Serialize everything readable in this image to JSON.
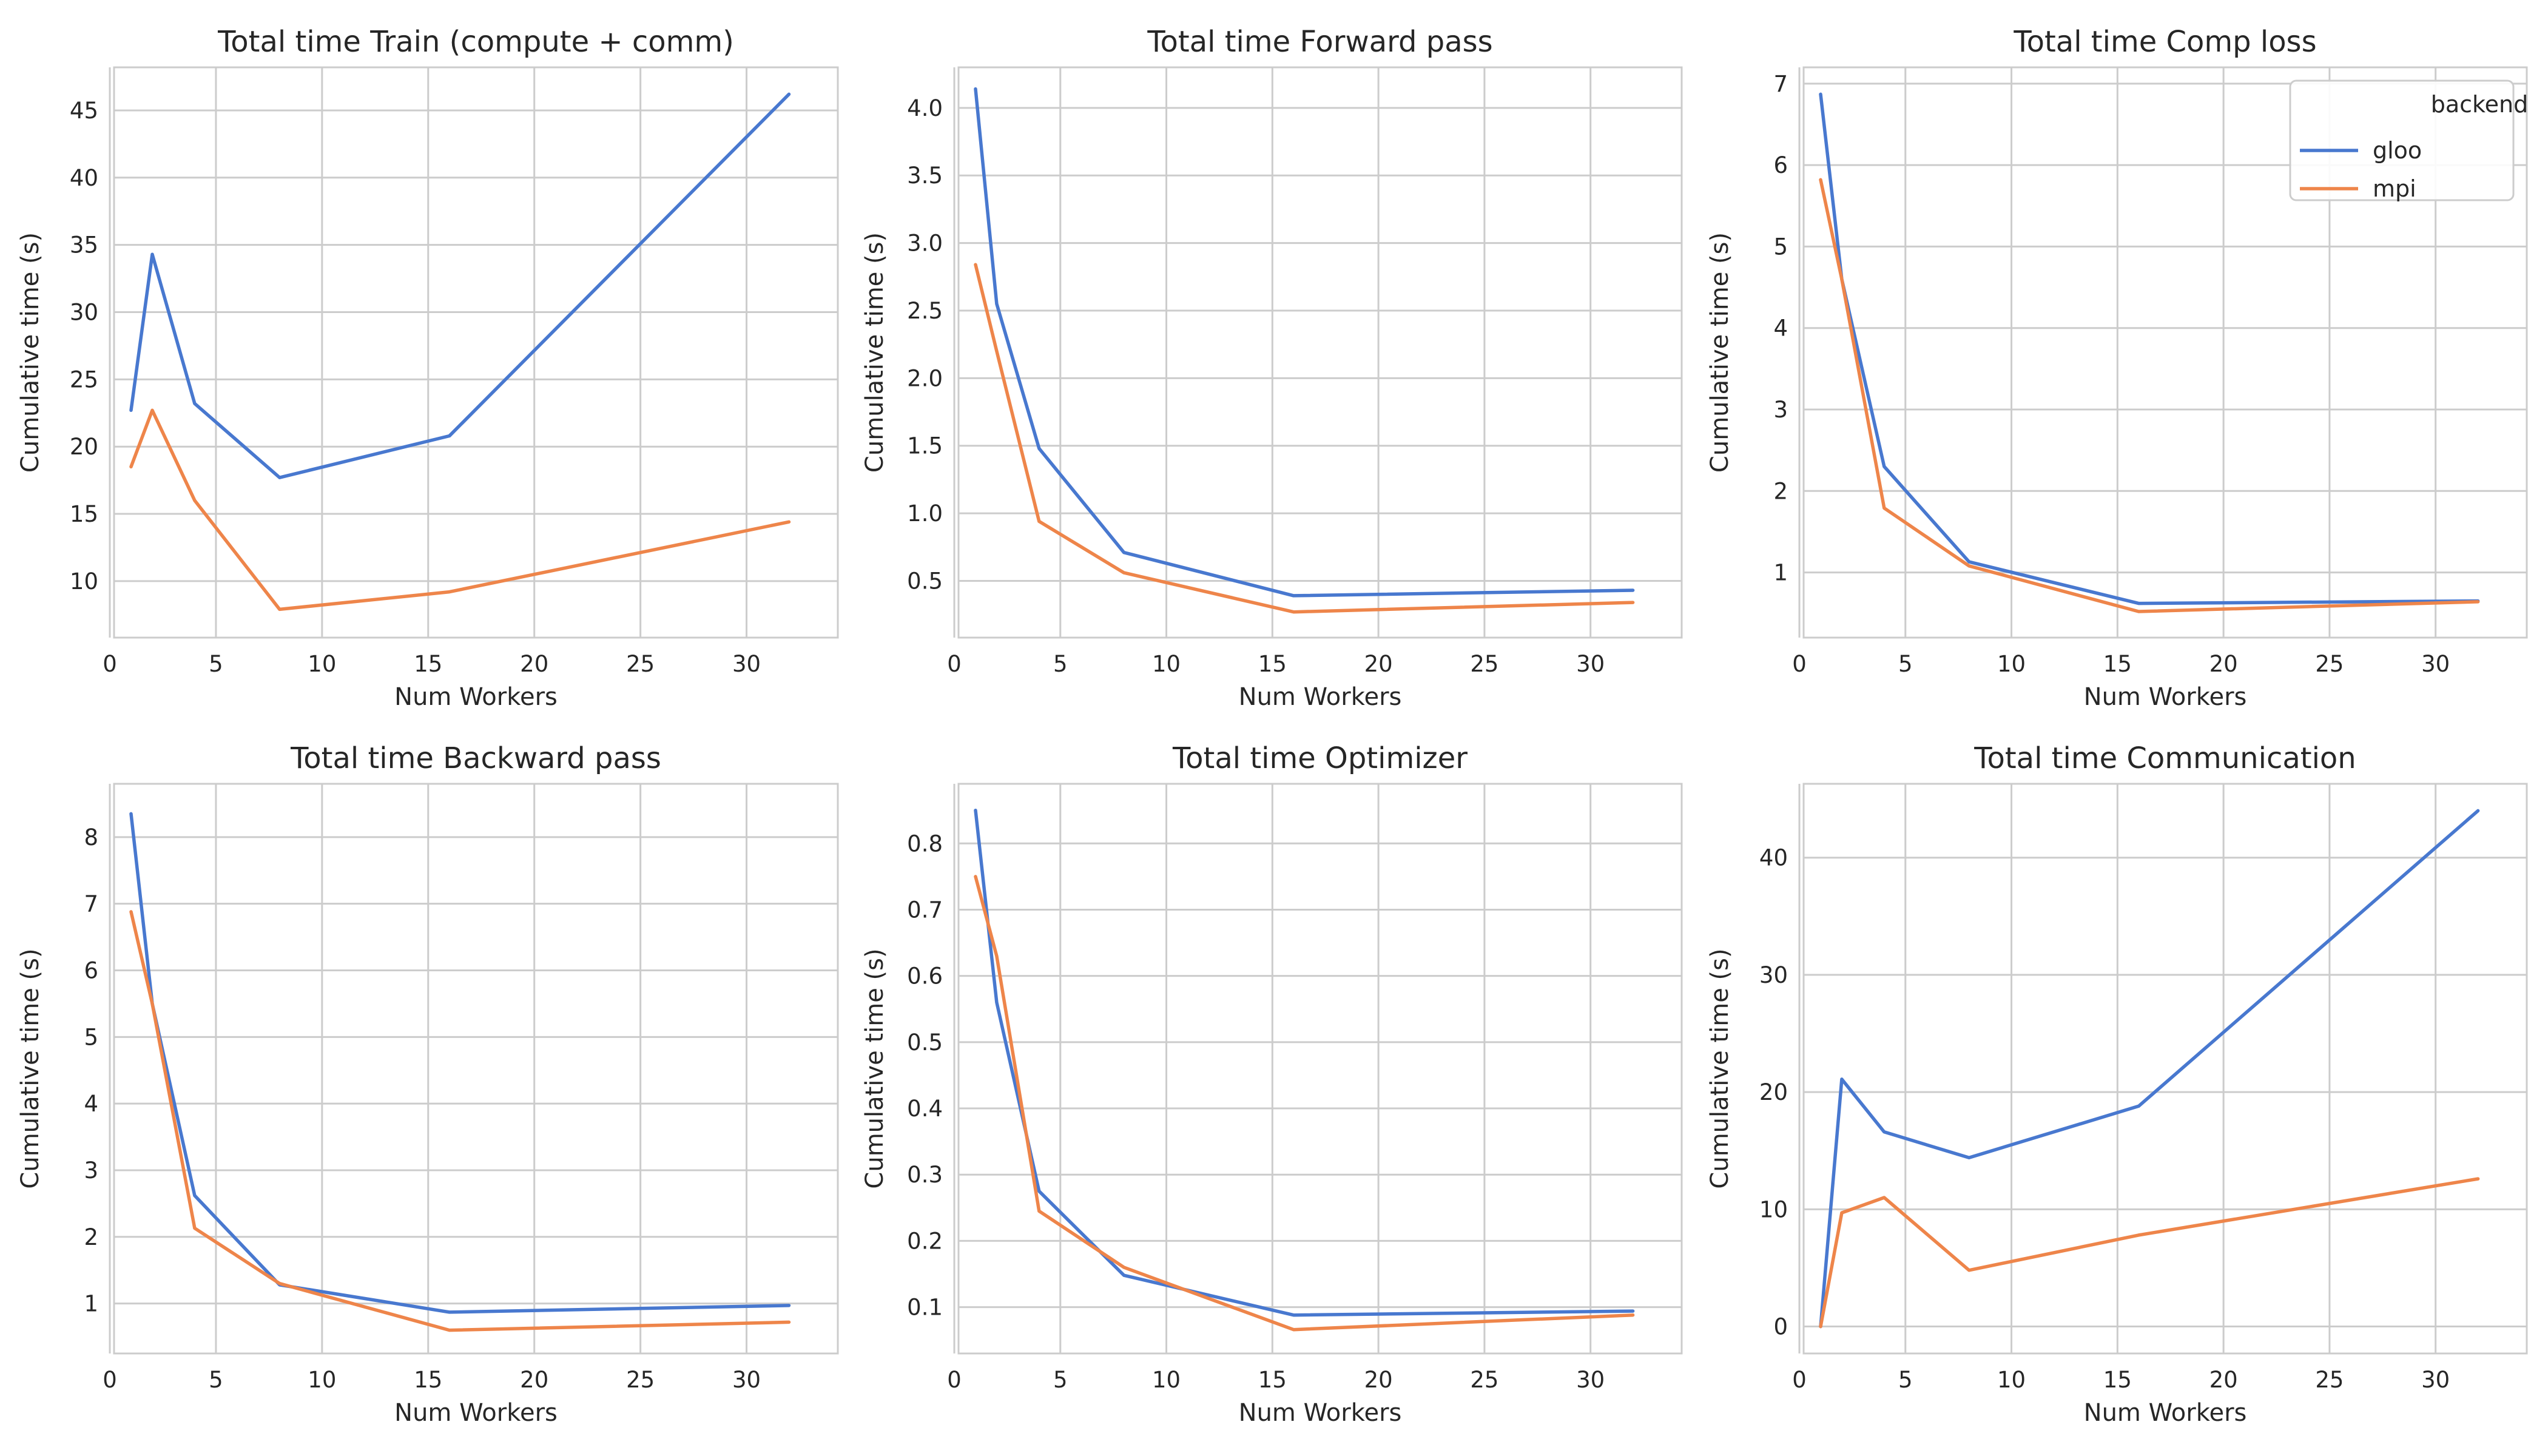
{
  "figure": {
    "legend": {
      "title": "backend",
      "placement": "top-right",
      "panel": 2
    }
  },
  "series_styles": [
    {
      "name": "gloo",
      "color": "#4878cf"
    },
    {
      "name": "mpi",
      "color": "#ee854a"
    }
  ],
  "chart_data": [
    {
      "type": "line",
      "title": "Total time Train (compute + comm)",
      "xlabel": "Num Workers",
      "ylabel": "Cumulative time (s)",
      "xlim": [
        0.2,
        34.3
      ],
      "ylim": [
        5.8,
        48.2
      ],
      "xticks": [
        0,
        5,
        10,
        15,
        20,
        25,
        30
      ],
      "yticks": [
        10,
        15,
        20,
        25,
        30,
        35,
        40,
        45
      ],
      "grid": true,
      "x": [
        1,
        2,
        4,
        8,
        16,
        32
      ],
      "series": [
        {
          "name": "gloo",
          "values": [
            22.7,
            34.3,
            23.2,
            17.7,
            20.8,
            46.2
          ]
        },
        {
          "name": "mpi",
          "values": [
            18.5,
            22.7,
            16.0,
            7.9,
            9.2,
            14.4
          ]
        }
      ]
    },
    {
      "type": "line",
      "title": "Total time Forward pass",
      "xlabel": "Num Workers",
      "ylabel": "Cumulative time (s)",
      "xlim": [
        0.2,
        34.3
      ],
      "ylim": [
        0.08,
        4.3
      ],
      "xticks": [
        0,
        5,
        10,
        15,
        20,
        25,
        30
      ],
      "yticks": [
        0.5,
        1.0,
        1.5,
        2.0,
        2.5,
        3.0,
        3.5,
        4.0
      ],
      "yticks_labels": [
        "0.5",
        "1.0",
        "1.5",
        "2.0",
        "2.5",
        "3.0",
        "3.5",
        "4.0"
      ],
      "grid": true,
      "x": [
        1,
        2,
        4,
        8,
        16,
        32
      ],
      "series": [
        {
          "name": "gloo",
          "values": [
            4.14,
            2.55,
            1.48,
            0.71,
            0.39,
            0.43
          ]
        },
        {
          "name": "mpi",
          "values": [
            2.84,
            2.2,
            0.94,
            0.56,
            0.27,
            0.34
          ]
        }
      ]
    },
    {
      "type": "line",
      "title": "Total time Comp loss",
      "xlabel": "Num Workers",
      "ylabel": "Cumulative time (s)",
      "xlim": [
        0.2,
        34.3
      ],
      "ylim": [
        0.2,
        7.2
      ],
      "xticks": [
        0,
        5,
        10,
        15,
        20,
        25,
        30
      ],
      "yticks": [
        1,
        2,
        3,
        4,
        5,
        6,
        7
      ],
      "grid": true,
      "x": [
        1,
        2,
        4,
        8,
        16,
        32
      ],
      "series": [
        {
          "name": "gloo",
          "values": [
            6.87,
            4.6,
            2.3,
            1.13,
            0.62,
            0.65
          ]
        },
        {
          "name": "mpi",
          "values": [
            5.82,
            4.6,
            1.79,
            1.08,
            0.52,
            0.64
          ]
        }
      ]
    },
    {
      "type": "line",
      "title": "Total time Backward pass",
      "xlabel": "Num Workers",
      "ylabel": "Cumulative time (s)",
      "xlim": [
        0.2,
        34.3
      ],
      "ylim": [
        0.25,
        8.8
      ],
      "xticks": [
        0,
        5,
        10,
        15,
        20,
        25,
        30
      ],
      "yticks": [
        1,
        2,
        3,
        4,
        5,
        6,
        7,
        8
      ],
      "grid": true,
      "x": [
        1,
        2,
        4,
        8,
        16,
        32
      ],
      "series": [
        {
          "name": "gloo",
          "values": [
            8.35,
            5.5,
            2.62,
            1.28,
            0.87,
            0.97
          ]
        },
        {
          "name": "mpi",
          "values": [
            6.88,
            5.5,
            2.13,
            1.3,
            0.6,
            0.72
          ]
        }
      ]
    },
    {
      "type": "line",
      "title": "Total time Optimizer",
      "xlabel": "Num Workers",
      "ylabel": "Cumulative time (s)",
      "xlim": [
        0.2,
        34.3
      ],
      "ylim": [
        0.03,
        0.89
      ],
      "xticks": [
        0,
        5,
        10,
        15,
        20,
        25,
        30
      ],
      "yticks": [
        0.1,
        0.2,
        0.3,
        0.4,
        0.5,
        0.6,
        0.7,
        0.8
      ],
      "grid": true,
      "x": [
        1,
        2,
        4,
        8,
        16,
        32
      ],
      "series": [
        {
          "name": "gloo",
          "values": [
            0.85,
            0.56,
            0.275,
            0.148,
            0.088,
            0.094
          ]
        },
        {
          "name": "mpi",
          "values": [
            0.75,
            0.63,
            0.245,
            0.16,
            0.066,
            0.088
          ]
        }
      ]
    },
    {
      "type": "line",
      "title": "Total time Communication",
      "xlabel": "Num Workers",
      "ylabel": "Cumulative time (s)",
      "xlim": [
        0.2,
        34.3
      ],
      "ylim": [
        -2.3,
        46.3
      ],
      "xticks": [
        0,
        5,
        10,
        15,
        20,
        25,
        30
      ],
      "yticks": [
        0,
        10,
        20,
        30,
        40
      ],
      "grid": true,
      "x": [
        1,
        2,
        4,
        8,
        16,
        32
      ],
      "series": [
        {
          "name": "gloo",
          "values": [
            0.0,
            21.1,
            16.6,
            14.4,
            18.8,
            44.0
          ]
        },
        {
          "name": "mpi",
          "values": [
            0.0,
            9.7,
            11.0,
            4.8,
            7.8,
            12.6
          ]
        }
      ]
    }
  ]
}
